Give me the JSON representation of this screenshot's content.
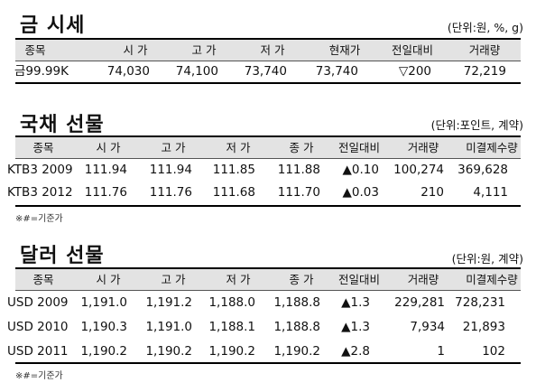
{
  "s1": {
    "title": "금 시세",
    "unit": "(단위:원, %, g)",
    "headers": [
      "종목",
      "시 가",
      "고 가",
      "저 가",
      "현재가",
      "전일대비",
      "거래량"
    ],
    "rows": [
      [
        "금99.99K",
        "74,030",
        "74,100",
        "73,740",
        "73,740",
        "▽200",
        "72,219"
      ]
    ]
  },
  "s2": {
    "title": "국채 선물",
    "unit": "(단위:포인트, 계약)",
    "headers": [
      "종목",
      "시 가",
      "고 가",
      "저 가",
      "종 가",
      "전일대비",
      "거래량",
      "미결제수량"
    ],
    "rows": [
      [
        "KTB3 2009",
        "111.94",
        "111.94",
        "111.85",
        "111.88",
        "▲0.10",
        "100,274",
        "369,628"
      ],
      [
        "KTB3 2012",
        "111.76",
        "111.76",
        "111.68",
        "111.70",
        "▲0.03",
        "210",
        "4,111"
      ]
    ],
    "note": "※#=기준가"
  },
  "s3": {
    "title": "달러 선물",
    "unit": "(단위:원, 계약)",
    "headers": [
      "종목",
      "시 가",
      "고 가",
      "저 가",
      "종 가",
      "전일대비",
      "거래량",
      "미결제수량"
    ],
    "rows": [
      [
        "USD 2009",
        "1,191.0",
        "1,191.2",
        "1,188.0",
        "1,188.8",
        "▲1.3",
        "229,281",
        "728,231"
      ],
      [
        "USD 2010",
        "1,190.3",
        "1,191.0",
        "1,188.1",
        "1,188.8",
        "▲1.3",
        "7,934",
        "21,893"
      ],
      [
        "USD 2011",
        "1,190.2",
        "1,190.2",
        "1,190.2",
        "1,190.2",
        "▲2.8",
        "1",
        "102"
      ]
    ],
    "note": "※#=기준가"
  }
}
